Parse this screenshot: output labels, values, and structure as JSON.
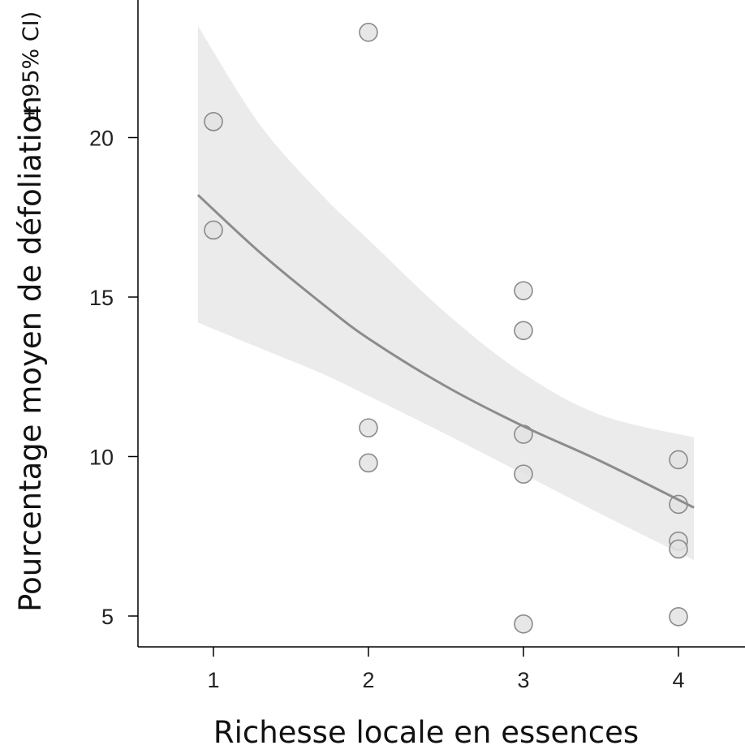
{
  "chart_data": {
    "type": "scatter",
    "title": "",
    "xlabel": "Richesse locale en essences",
    "ylabel": "Pourcentage moyen de défoliation",
    "ylabel_suffix": "± 95% CI)",
    "xlim": [
      0.5,
      4.4
    ],
    "ylim": [
      3.95,
      24.0
    ],
    "x_ticks": [
      1,
      2,
      3,
      4
    ],
    "y_ticks": [
      5,
      10,
      15,
      20
    ],
    "grid": false,
    "legend": "none",
    "points": [
      {
        "x": 1,
        "y": 20.5
      },
      {
        "x": 1,
        "y": 17.1
      },
      {
        "x": 2,
        "y": 23.3
      },
      {
        "x": 2,
        "y": 10.9
      },
      {
        "x": 2,
        "y": 9.8
      },
      {
        "x": 3,
        "y": 15.2
      },
      {
        "x": 3,
        "y": 13.95
      },
      {
        "x": 3,
        "y": 10.7
      },
      {
        "x": 3,
        "y": 9.45
      },
      {
        "x": 3,
        "y": 4.75
      },
      {
        "x": 4,
        "y": 9.9
      },
      {
        "x": 4,
        "y": 8.5
      },
      {
        "x": 4,
        "y": 7.35
      },
      {
        "x": 4,
        "y": 7.1
      },
      {
        "x": 4,
        "y": 4.98
      }
    ],
    "fit": {
      "x": [
        0.9,
        1.3,
        1.7,
        2.0,
        2.5,
        3.0,
        3.5,
        4.1
      ],
      "y": [
        18.2,
        16.4,
        14.8,
        13.7,
        12.2,
        10.95,
        9.85,
        8.4
      ],
      "lower": [
        14.2,
        13.4,
        12.6,
        11.9,
        10.7,
        9.45,
        8.2,
        6.75
      ],
      "upper": [
        23.5,
        20.4,
        18.2,
        16.8,
        14.5,
        12.6,
        11.3,
        10.6
      ]
    },
    "colors": {
      "point_fill": "#e3e3e3",
      "point_stroke": "#8a8a8a",
      "line": "#8c8c8c",
      "band": "#ebebeb",
      "axis": "#000000"
    }
  }
}
